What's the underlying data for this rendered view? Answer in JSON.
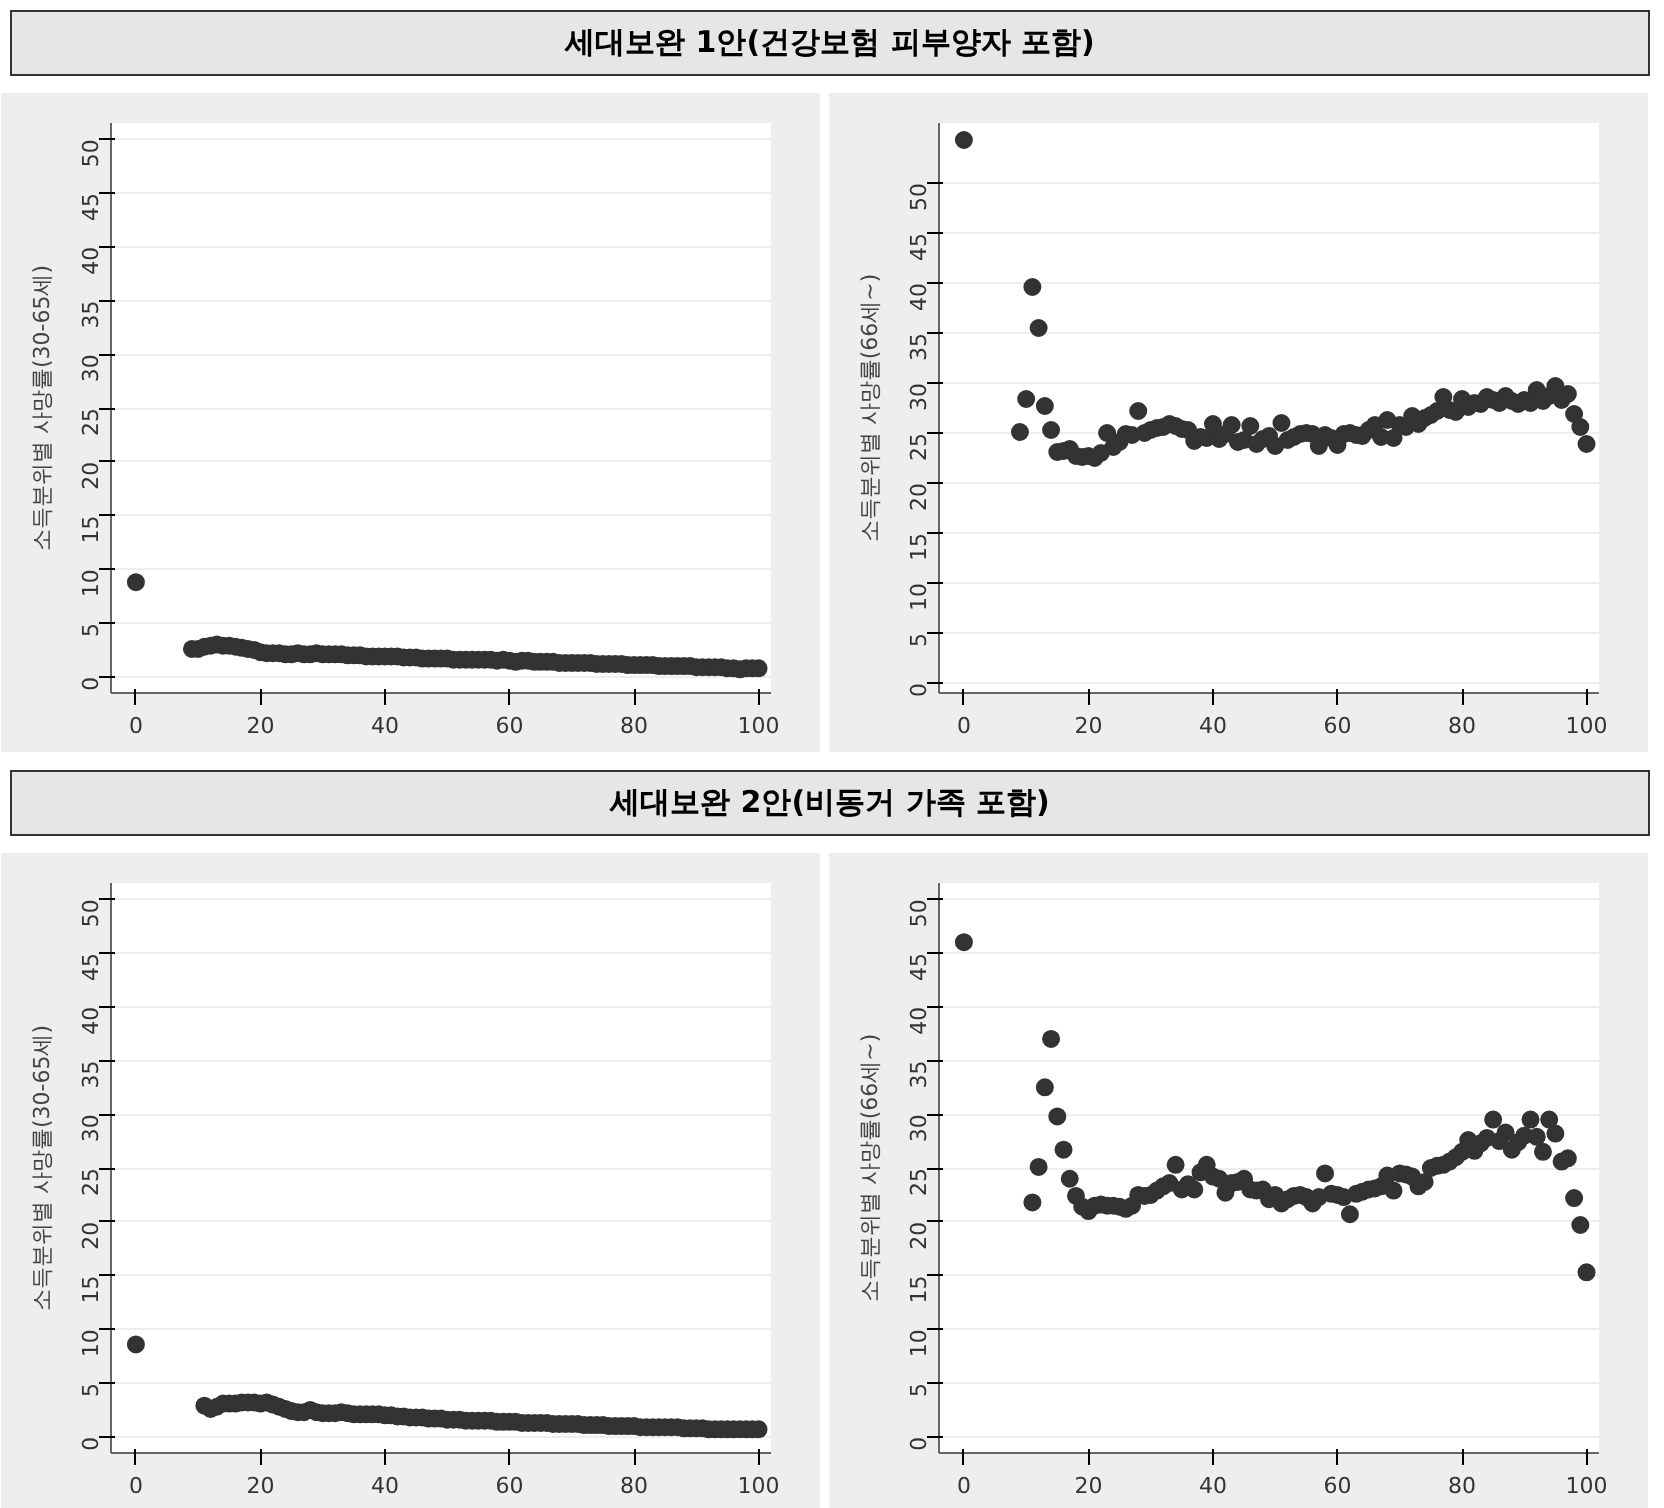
{
  "chart_data": [
    {
      "type": "scatter",
      "title": "세대보완 1안(건강보험 피부양자 포함)",
      "ylabel": "소득분위별 사망률(30-65세)",
      "marker": "circle",
      "grid": "y",
      "xlim": [
        -4,
        102
      ],
      "ylim": [
        -1.5,
        51.5
      ],
      "xticks": [
        0,
        20,
        40,
        60,
        80,
        100
      ],
      "yticks": [
        0,
        5,
        10,
        15,
        20,
        25,
        30,
        35,
        40,
        45,
        50
      ],
      "series": [
        {
          "color": "#333333",
          "x": [
            0,
            9,
            10,
            11,
            12,
            13,
            14,
            15,
            16,
            17,
            18,
            19,
            20,
            21,
            22,
            23,
            24,
            25,
            26,
            27,
            28,
            29,
            30,
            31,
            32,
            33,
            34,
            35,
            36,
            37,
            38,
            39,
            40,
            41,
            42,
            43,
            44,
            45,
            46,
            47,
            48,
            49,
            50,
            51,
            52,
            53,
            54,
            55,
            56,
            57,
            58,
            59,
            60,
            61,
            62,
            63,
            64,
            65,
            66,
            67,
            68,
            69,
            70,
            71,
            72,
            73,
            74,
            75,
            76,
            77,
            78,
            79,
            80,
            81,
            82,
            83,
            84,
            85,
            86,
            87,
            88,
            89,
            90,
            91,
            92,
            93,
            94,
            95,
            96,
            97,
            98,
            99,
            100
          ],
          "values": [
            8.8,
            2.6,
            2.6,
            2.8,
            2.9,
            3.0,
            2.9,
            2.9,
            2.8,
            2.7,
            2.6,
            2.5,
            2.3,
            2.2,
            2.2,
            2.2,
            2.1,
            2.1,
            2.2,
            2.1,
            2.1,
            2.2,
            2.1,
            2.1,
            2.1,
            2.1,
            2.0,
            2.0,
            2.0,
            1.9,
            1.9,
            1.9,
            1.9,
            1.9,
            1.9,
            1.8,
            1.8,
            1.8,
            1.7,
            1.7,
            1.7,
            1.7,
            1.7,
            1.6,
            1.6,
            1.6,
            1.6,
            1.6,
            1.6,
            1.6,
            1.5,
            1.6,
            1.5,
            1.4,
            1.5,
            1.5,
            1.4,
            1.4,
            1.4,
            1.4,
            1.3,
            1.3,
            1.3,
            1.3,
            1.3,
            1.3,
            1.2,
            1.2,
            1.2,
            1.2,
            1.2,
            1.1,
            1.1,
            1.1,
            1.1,
            1.1,
            1.0,
            1.0,
            1.0,
            1.0,
            1.0,
            1.0,
            0.9,
            0.9,
            0.9,
            0.9,
            0.9,
            0.8,
            0.8,
            0.7,
            0.8,
            0.8,
            0.8
          ]
        }
      ]
    },
    {
      "type": "scatter",
      "ylabel": "소득분위별 사망률(66세~)",
      "marker": "circle",
      "grid": "y",
      "xlim": [
        -4,
        102
      ],
      "ylim": [
        -1,
        56
      ],
      "xticks": [
        0,
        20,
        40,
        60,
        80,
        100
      ],
      "yticks": [
        0,
        5,
        10,
        15,
        20,
        25,
        30,
        35,
        40,
        45,
        50
      ],
      "series": [
        {
          "color": "#333333",
          "x": [
            0,
            9,
            10,
            11,
            12,
            13,
            14,
            15,
            16,
            17,
            18,
            19,
            20,
            21,
            22,
            23,
            24,
            25,
            26,
            27,
            28,
            29,
            30,
            31,
            32,
            33,
            34,
            35,
            36,
            37,
            38,
            39,
            40,
            41,
            42,
            43,
            44,
            45,
            46,
            47,
            48,
            49,
            50,
            51,
            52,
            53,
            54,
            55,
            56,
            57,
            58,
            59,
            60,
            61,
            62,
            63,
            64,
            65,
            66,
            67,
            68,
            69,
            70,
            71,
            72,
            73,
            74,
            75,
            76,
            77,
            78,
            79,
            80,
            81,
            82,
            83,
            84,
            85,
            86,
            87,
            88,
            89,
            90,
            91,
            92,
            93,
            94,
            95,
            96,
            97,
            98,
            99,
            100
          ],
          "values": [
            54.3,
            25.1,
            28.4,
            39.6,
            35.5,
            27.7,
            25.3,
            23.1,
            23.2,
            23.4,
            22.7,
            22.6,
            22.7,
            22.5,
            23.0,
            25.0,
            23.6,
            24.1,
            24.9,
            24.8,
            27.2,
            25.0,
            25.3,
            25.5,
            25.6,
            25.9,
            25.7,
            25.4,
            25.3,
            24.2,
            24.6,
            24.5,
            25.9,
            24.4,
            24.9,
            25.8,
            24.1,
            24.3,
            25.7,
            23.9,
            24.4,
            24.7,
            23.7,
            26.0,
            24.3,
            24.6,
            24.9,
            25.0,
            24.9,
            23.7,
            24.8,
            24.5,
            23.8,
            24.9,
            25.0,
            24.8,
            24.7,
            25.3,
            25.8,
            24.6,
            26.3,
            24.5,
            25.8,
            25.6,
            26.7,
            25.9,
            26.5,
            26.8,
            27.2,
            28.6,
            27.3,
            27.1,
            28.4,
            27.6,
            28.0,
            27.9,
            28.6,
            28.3,
            28.0,
            28.7,
            28.2,
            27.9,
            28.3,
            28.0,
            29.3,
            28.2,
            28.7,
            29.7,
            28.3,
            28.9,
            26.9,
            25.6,
            23.9
          ]
        }
      ]
    },
    {
      "type": "scatter",
      "title": "세대보완 2안(비동거 가족 포함)",
      "ylabel": "소득분위별 사망률(30-65세)",
      "marker": "circle",
      "grid": "y",
      "xlim": [
        -4,
        102
      ],
      "ylim": [
        -1.5,
        51.5
      ],
      "xticks": [
        0,
        20,
        40,
        60,
        80,
        100
      ],
      "yticks": [
        0,
        5,
        10,
        15,
        20,
        25,
        30,
        35,
        40,
        45,
        50
      ],
      "series": [
        {
          "color": "#333333",
          "x": [
            0,
            11,
            12,
            13,
            14,
            15,
            16,
            17,
            18,
            19,
            20,
            21,
            22,
            23,
            24,
            25,
            26,
            27,
            28,
            29,
            30,
            31,
            32,
            33,
            34,
            35,
            36,
            37,
            38,
            39,
            40,
            41,
            42,
            43,
            44,
            45,
            46,
            47,
            48,
            49,
            50,
            51,
            52,
            53,
            54,
            55,
            56,
            57,
            58,
            59,
            60,
            61,
            62,
            63,
            64,
            65,
            66,
            67,
            68,
            69,
            70,
            71,
            72,
            73,
            74,
            75,
            76,
            77,
            78,
            79,
            80,
            81,
            82,
            83,
            84,
            85,
            86,
            87,
            88,
            89,
            90,
            91,
            92,
            93,
            94,
            95,
            96,
            97,
            98,
            99,
            100
          ],
          "values": [
            8.6,
            2.9,
            2.6,
            2.8,
            3.1,
            3.1,
            3.1,
            3.2,
            3.2,
            3.2,
            3.1,
            3.2,
            3.0,
            2.8,
            2.6,
            2.4,
            2.3,
            2.3,
            2.5,
            2.3,
            2.2,
            2.2,
            2.2,
            2.3,
            2.2,
            2.1,
            2.1,
            2.1,
            2.1,
            2.1,
            2.0,
            2.0,
            1.9,
            1.9,
            1.8,
            1.8,
            1.8,
            1.7,
            1.7,
            1.7,
            1.6,
            1.6,
            1.6,
            1.5,
            1.5,
            1.5,
            1.5,
            1.5,
            1.4,
            1.4,
            1.4,
            1.4,
            1.3,
            1.3,
            1.3,
            1.3,
            1.3,
            1.2,
            1.2,
            1.2,
            1.2,
            1.2,
            1.1,
            1.1,
            1.1,
            1.1,
            1.0,
            1.0,
            1.0,
            1.0,
            1.0,
            0.9,
            0.9,
            0.9,
            0.9,
            0.9,
            0.9,
            0.9,
            0.8,
            0.8,
            0.8,
            0.8,
            0.7,
            0.7,
            0.7,
            0.7,
            0.7,
            0.7,
            0.7,
            0.7,
            0.7
          ]
        }
      ]
    },
    {
      "type": "scatter",
      "ylabel": "소득분위별 사망률(66세~)",
      "marker": "circle",
      "grid": "y",
      "xlim": [
        -4,
        102
      ],
      "ylim": [
        -1.5,
        51.5
      ],
      "xticks": [
        0,
        20,
        40,
        60,
        80,
        100
      ],
      "yticks": [
        0,
        5,
        10,
        15,
        20,
        25,
        30,
        35,
        40,
        45,
        50
      ],
      "series": [
        {
          "color": "#333333",
          "x": [
            0,
            11,
            12,
            13,
            14,
            15,
            16,
            17,
            18,
            19,
            20,
            21,
            22,
            23,
            24,
            25,
            26,
            27,
            28,
            29,
            30,
            31,
            32,
            33,
            34,
            35,
            36,
            37,
            38,
            39,
            40,
            41,
            42,
            43,
            44,
            45,
            46,
            47,
            48,
            49,
            50,
            51,
            52,
            53,
            54,
            55,
            56,
            57,
            58,
            59,
            60,
            61,
            62,
            63,
            64,
            65,
            66,
            67,
            68,
            69,
            70,
            71,
            72,
            73,
            74,
            75,
            76,
            77,
            78,
            79,
            80,
            81,
            82,
            83,
            84,
            85,
            86,
            87,
            88,
            89,
            90,
            91,
            92,
            93,
            94,
            95,
            96,
            97,
            98,
            99,
            100
          ],
          "values": [
            46.0,
            21.8,
            25.1,
            32.5,
            37.0,
            29.8,
            26.7,
            24.0,
            22.4,
            21.4,
            21.0,
            21.5,
            21.6,
            21.5,
            21.5,
            21.4,
            21.2,
            21.5,
            22.5,
            22.4,
            22.5,
            22.9,
            23.3,
            23.6,
            25.3,
            23.0,
            23.5,
            23.0,
            24.6,
            25.3,
            24.2,
            24.0,
            22.7,
            23.6,
            23.7,
            24.0,
            23.0,
            22.9,
            23.0,
            22.1,
            22.5,
            21.7,
            22.1,
            22.4,
            22.5,
            22.3,
            21.7,
            22.3,
            24.5,
            22.6,
            22.5,
            22.3,
            20.7,
            22.6,
            22.8,
            23.0,
            23.1,
            23.3,
            24.3,
            22.9,
            24.5,
            24.4,
            24.2,
            23.3,
            23.7,
            25.0,
            25.2,
            25.3,
            25.6,
            26.0,
            26.5,
            27.6,
            26.6,
            27.3,
            27.8,
            29.5,
            27.5,
            28.3,
            26.7,
            27.4,
            28.0,
            29.5,
            27.9,
            26.5,
            29.5,
            28.2,
            25.6,
            25.9,
            22.2,
            19.7,
            15.3
          ]
        }
      ]
    }
  ]
}
